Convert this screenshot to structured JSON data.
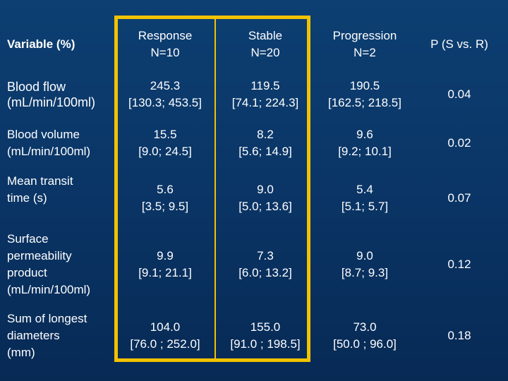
{
  "colors": {
    "background": "#0a3566",
    "text": "#ffffff",
    "highlight_border": "#f2c200"
  },
  "table": {
    "header": {
      "variable": "Variable (%)",
      "response": [
        "Response",
        "N=10"
      ],
      "stable": [
        "Stable",
        "N=20"
      ],
      "progression": [
        "Progression",
        "N=2"
      ],
      "p": "P (S vs. R)"
    },
    "rows": [
      {
        "variable": "Blood flow\n(mL/min/100ml)",
        "response": [
          "245.3",
          "[130.3; 453.5]"
        ],
        "stable": [
          "119.5",
          "[74.1; 224.3]"
        ],
        "progression": [
          "190.5",
          "[162.5; 218.5]"
        ],
        "p": "0.04"
      },
      {
        "variable": "Blood volume\n(mL/min/100ml)",
        "response": [
          "15.5",
          "[9.0; 24.5]"
        ],
        "stable": [
          "8.2",
          "[5.6; 14.9]"
        ],
        "progression": [
          "9.6",
          "[9.2; 10.1]"
        ],
        "p": "0.02"
      },
      {
        "variable": "Mean transit\ntime (s)",
        "response": [
          "5.6",
          "[3.5; 9.5]"
        ],
        "stable": [
          "9.0",
          "[5.0; 13.6]"
        ],
        "progression": [
          "5.4",
          "[5.1; 5.7]"
        ],
        "p": "0.07"
      },
      {
        "variable": "Surface\npermeability\nproduct\n(mL/min/100ml)",
        "response": [
          "9.9",
          "[9.1; 21.1]"
        ],
        "stable": [
          "7.3",
          "[6.0; 13.2]"
        ],
        "progression": [
          "9.0",
          "[8.7; 9.3]"
        ],
        "p": "0.12"
      },
      {
        "variable": "Sum of longest\ndiameters\n(mm)",
        "response": [
          "104.0",
          "[76.0 ; 252.0]"
        ],
        "stable": [
          "155.0",
          "[91.0 ; 198.5]"
        ],
        "progression": [
          "73.0",
          "[50.0 ; 96.0]"
        ],
        "p": "0.18"
      }
    ]
  }
}
